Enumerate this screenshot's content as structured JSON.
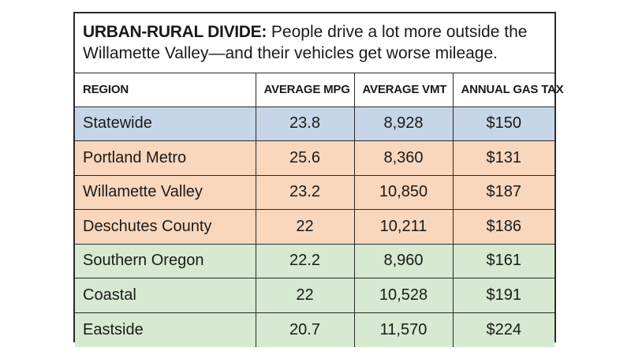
{
  "headline": {
    "kicker": "URBAN-RURAL DIVIDE:",
    "text": "People drive a lot more outside the Willamette Valley—and their vehicles get worse mileage."
  },
  "colors": {
    "statewide": "#c6d5e7",
    "metro_valley": "#f8d7bd",
    "rural": "#d7e9d0"
  },
  "chart_data": {
    "type": "table",
    "title": "URBAN-RURAL DIVIDE: People drive a lot more outside the Willamette Valley—and their vehicles get worse mileage.",
    "columns": [
      "REGION",
      "AVERAGE MPG",
      "AVERAGE VMT",
      "ANNUAL GAS TAX"
    ],
    "rows": [
      {
        "region": "Statewide",
        "mpg": "23.8",
        "vmt": "8,928",
        "tax": "$150",
        "group": "statewide"
      },
      {
        "region": "Portland Metro",
        "mpg": "25.6",
        "vmt": "8,360",
        "tax": "$131",
        "group": "metro_valley"
      },
      {
        "region": "Willamette Valley",
        "mpg": "23.2",
        "vmt": "10,850",
        "tax": "$187",
        "group": "metro_valley"
      },
      {
        "region": "Deschutes County",
        "mpg": "22",
        "vmt": "10,211",
        "tax": "$186",
        "group": "metro_valley"
      },
      {
        "region": "Southern Oregon",
        "mpg": "22.2",
        "vmt": "8,960",
        "tax": "$161",
        "group": "rural"
      },
      {
        "region": "Coastal",
        "mpg": "22",
        "vmt": "10,528",
        "tax": "$191",
        "group": "rural"
      },
      {
        "region": "Eastside",
        "mpg": "20.7",
        "vmt": "11,570",
        "tax": "$224",
        "group": "rural"
      }
    ]
  }
}
